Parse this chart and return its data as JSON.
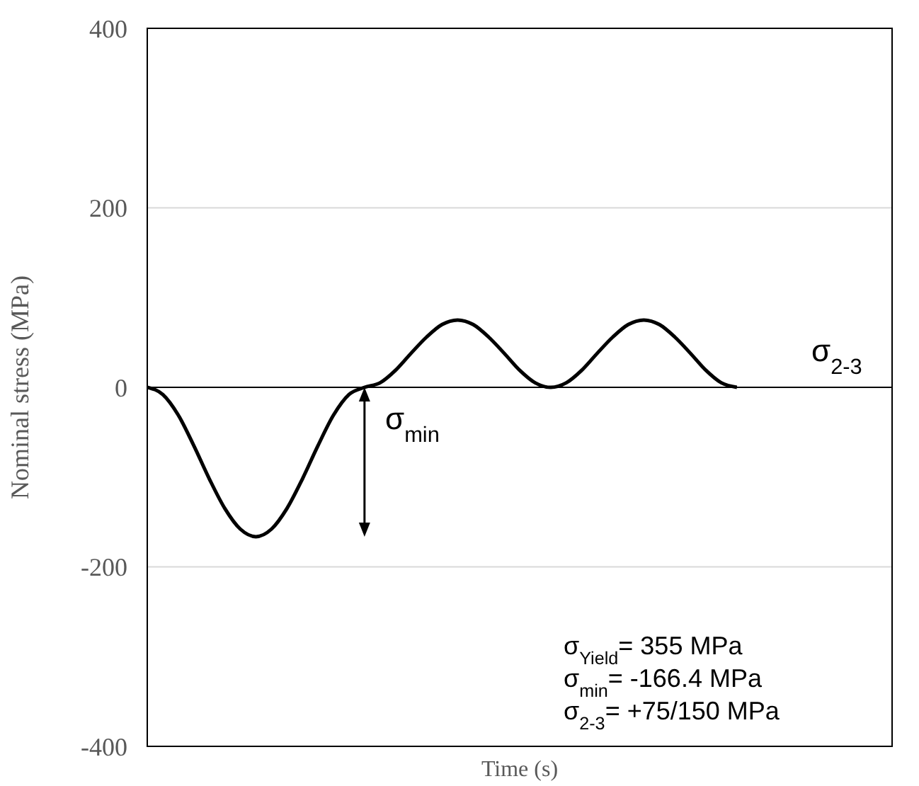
{
  "chart_data": {
    "type": "line",
    "xlabel": "Time (s)",
    "ylabel": "Nominal stress (MPa)",
    "categories": [
      null,
      null,
      null,
      null,
      null,
      null,
      null,
      null,
      null,
      null,
      null,
      null,
      null,
      null,
      null,
      null,
      null,
      null,
      null,
      null,
      null,
      null,
      null,
      null,
      null,
      null,
      null,
      null,
      null,
      null,
      null,
      null,
      null,
      null,
      null,
      null,
      null,
      null,
      null,
      null,
      null,
      null,
      null,
      null,
      null,
      null,
      null,
      null,
      null
    ],
    "series": [
      {
        "color": "#000000",
        "values": [
          0,
          -8,
          -31,
          -65,
          -102,
          -135,
          -158,
          -166.4,
          -158,
          -135,
          -102,
          -65,
          -31,
          -8,
          0,
          5,
          19,
          38,
          56,
          70,
          75,
          70,
          56,
          38,
          19,
          5,
          0,
          5,
          19,
          38,
          56,
          70,
          75,
          70,
          56,
          38,
          19,
          5,
          0,
          null,
          null,
          null,
          null,
          null,
          null,
          null,
          null,
          null,
          null
        ]
      }
    ],
    "ylim": [
      -400,
      400
    ],
    "yticks": [
      -400,
      -200,
      0,
      200,
      400
    ],
    "grid": "y",
    "marker": "none",
    "line_style": "solid",
    "annotations": [
      "σ$_{2-3}$",
      "σ$_{min}$",
      "σ$_{Yield}$=   355 MPa",
      "σ$_{min}$=   -166.4 MPa",
      "σ$_{2-3}$=   +75/150 MPa"
    ]
  }
}
